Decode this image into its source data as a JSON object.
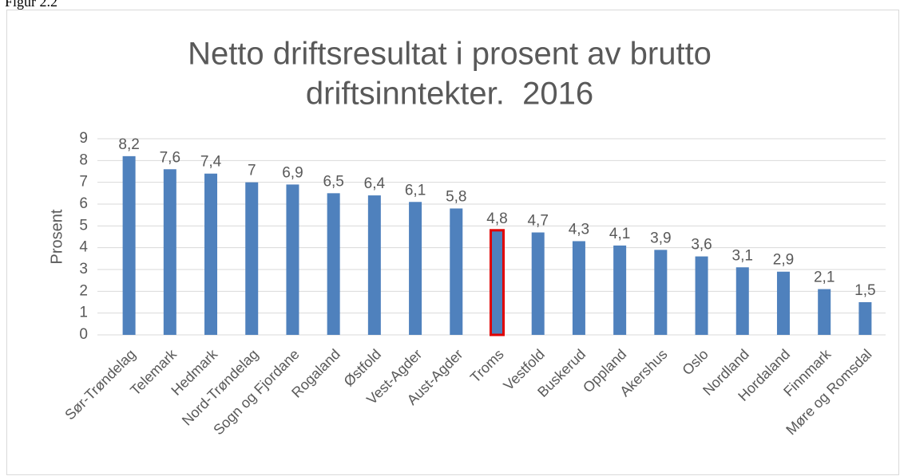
{
  "caption": "Figur 2.2",
  "chart_data": {
    "type": "bar",
    "title": [
      "Netto driftsresultat i prosent av brutto",
      "driftsinntekter.  2016"
    ],
    "y_label": "Prosent",
    "categories": [
      "Sør-Trøndelag",
      "Telemark",
      "Hedmark",
      "Nord-Trøndelag",
      "Sogn og Fjordane",
      "Rogaland",
      "Østfold",
      "Vest-Agder",
      "Aust-Agder",
      "Troms",
      "Vestfold",
      "Buskerud",
      "Oppland",
      "Akershus",
      "Oslo",
      "Nordland",
      "Hordaland",
      "Finnmark",
      "Møre og Romsdal"
    ],
    "values": [
      8.2,
      7.6,
      7.4,
      7,
      6.9,
      6.5,
      6.4,
      6.1,
      5.8,
      4.8,
      4.7,
      4.3,
      4.1,
      3.9,
      3.6,
      3.1,
      2.9,
      2.1,
      1.5
    ],
    "value_labels": [
      "8,2",
      "7,6",
      "7,4",
      "7",
      "6,9",
      "6,5",
      "6,4",
      "6,1",
      "5,8",
      "4,8",
      "4,7",
      "4,3",
      "4,1",
      "3,9",
      "3,6",
      "3,1",
      "2,9",
      "2,1",
      "1,5"
    ],
    "color": "#4f81bd",
    "highlight": {
      "index": 9,
      "color": "#e00000"
    },
    "ylim": [
      0,
      9
    ],
    "yticks": [
      0,
      1,
      2,
      3,
      4,
      5,
      6,
      7,
      8,
      9
    ],
    "grid": true
  }
}
